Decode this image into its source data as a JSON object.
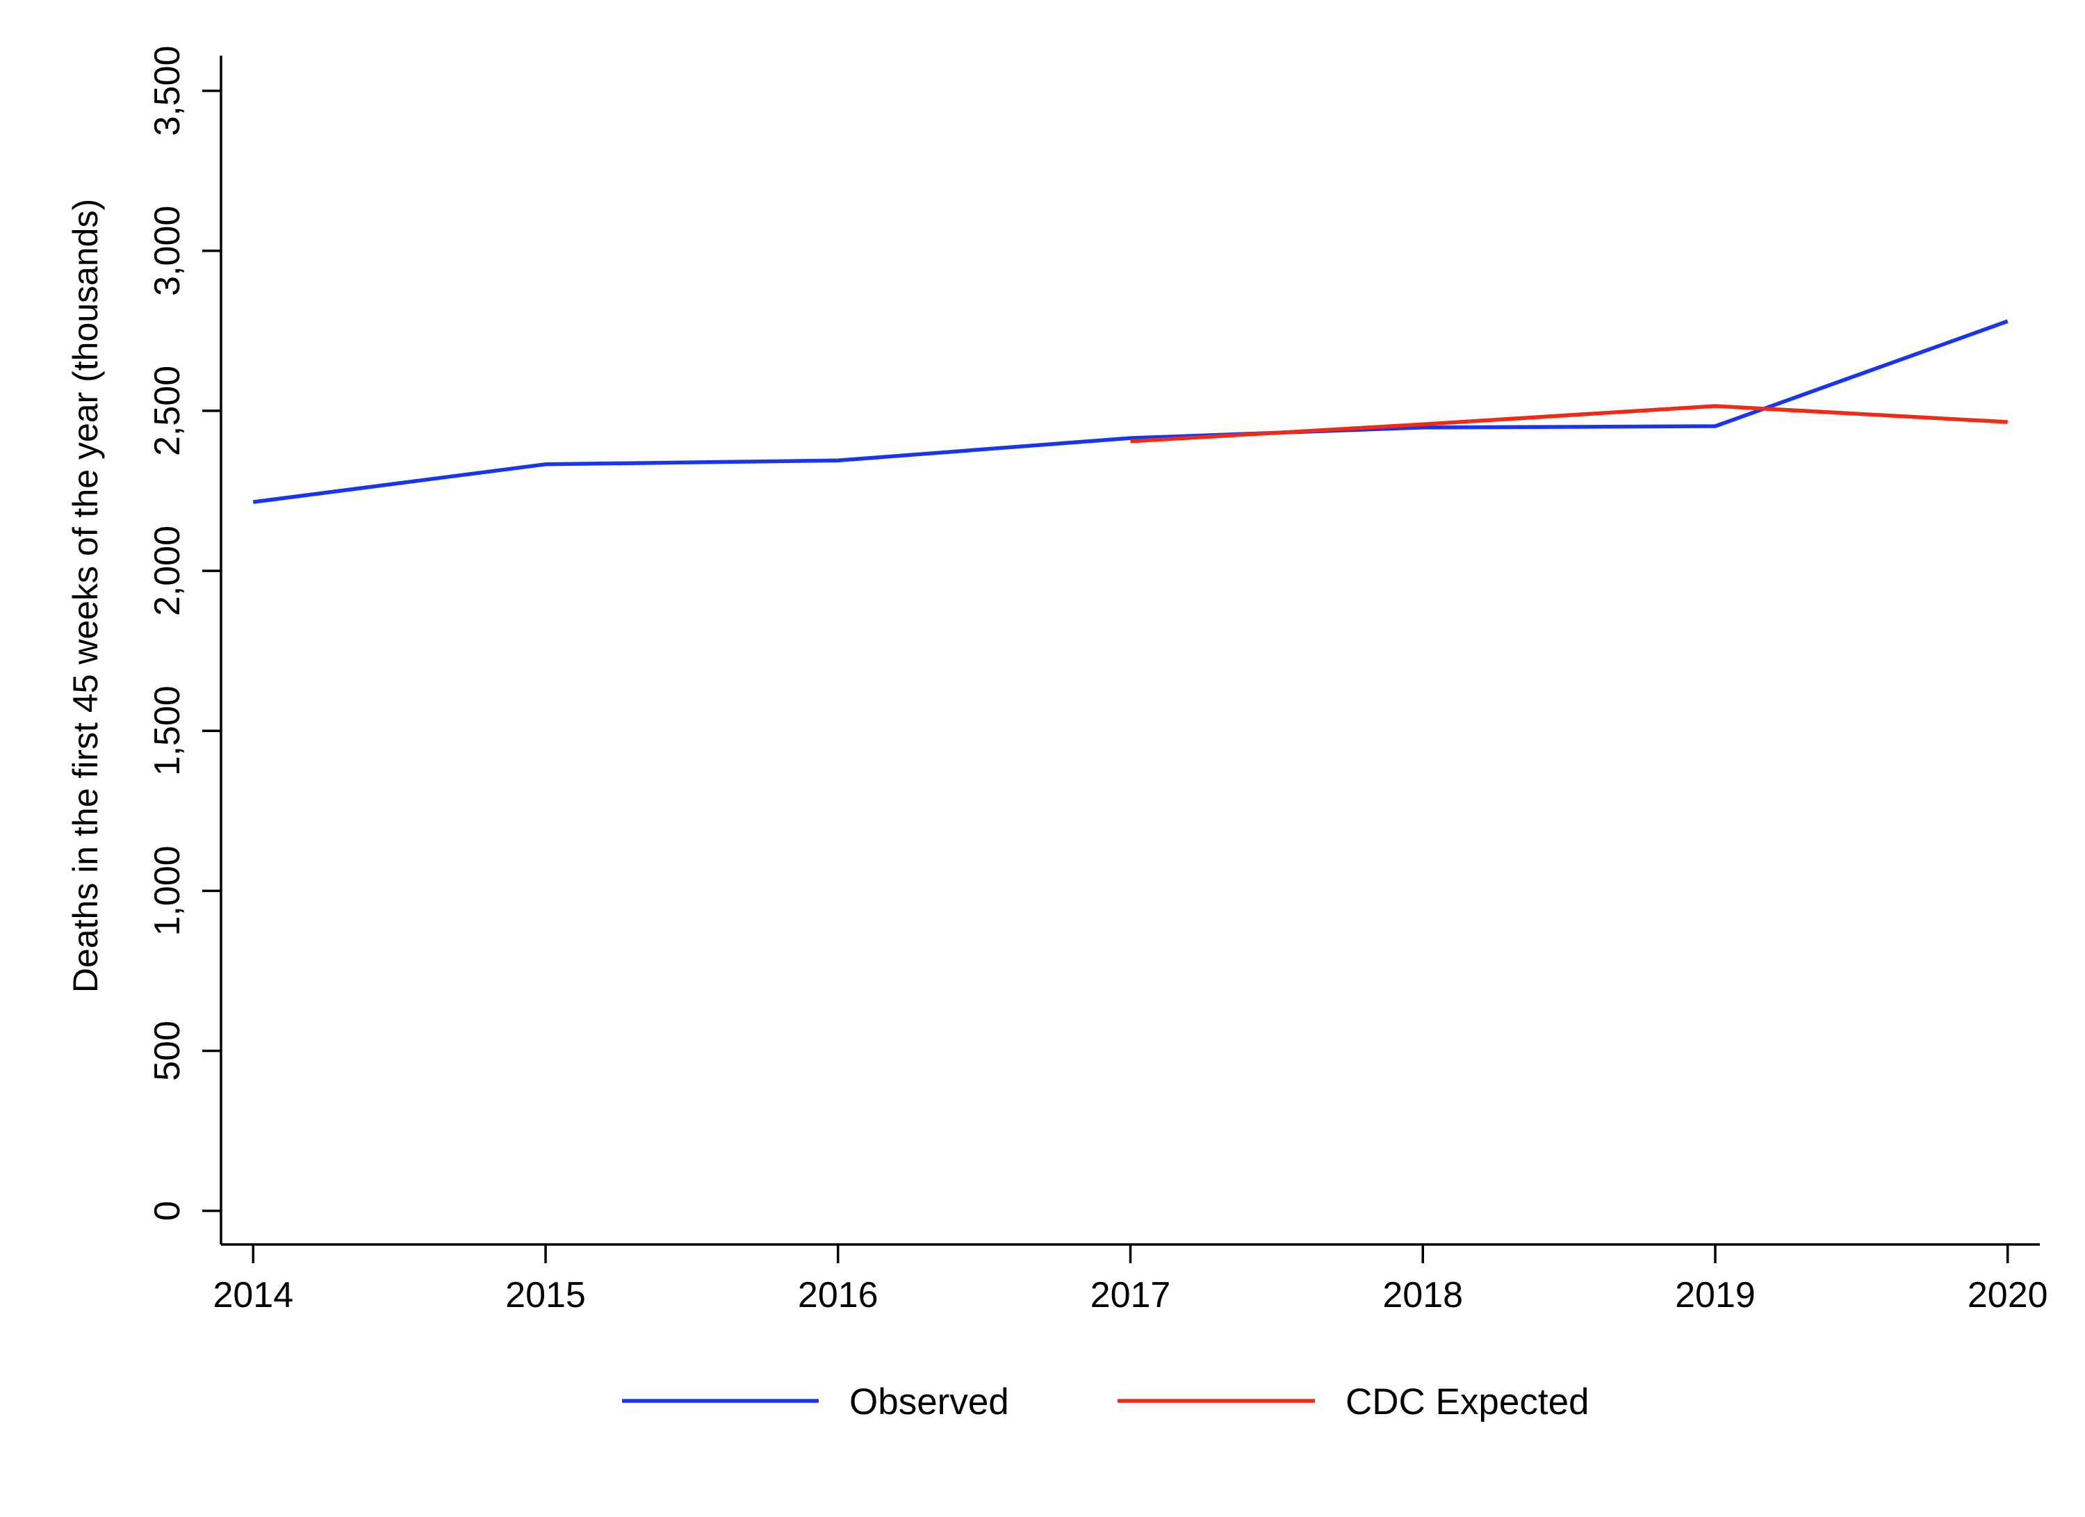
{
  "chart_data": {
    "type": "line",
    "title": "",
    "xlabel": "",
    "ylabel": "Deaths in the first 45 weeks of the year (thousands)",
    "x": [
      2014,
      2015,
      2016,
      2017,
      2018,
      2019,
      2020
    ],
    "x_tick_labels": [
      "2014",
      "2015",
      "2016",
      "2017",
      "2018",
      "2019",
      "2020"
    ],
    "y_ticks": [
      0,
      500,
      1000,
      1500,
      2000,
      2500,
      3000,
      3500
    ],
    "y_tick_labels": [
      "0",
      "500",
      "1,000",
      "1,500",
      "2,000",
      "2,500",
      "3,000",
      "3,500"
    ],
    "xlim": [
      2013.89,
      2020.11
    ],
    "ylim": [
      -105,
      3610
    ],
    "grid": false,
    "legend_position": "bottom",
    "series": [
      {
        "name": "Observed",
        "color": "#1a35f0",
        "x": [
          2014,
          2015,
          2016,
          2017,
          2018,
          2019,
          2020
        ],
        "values": [
          2215,
          2333,
          2345,
          2415,
          2448,
          2452,
          2780
        ]
      },
      {
        "name": "CDC Expected",
        "color": "#f02a15",
        "x": [
          2017,
          2018,
          2019,
          2020
        ],
        "values": [
          2405,
          2458,
          2515,
          2465
        ]
      }
    ]
  }
}
